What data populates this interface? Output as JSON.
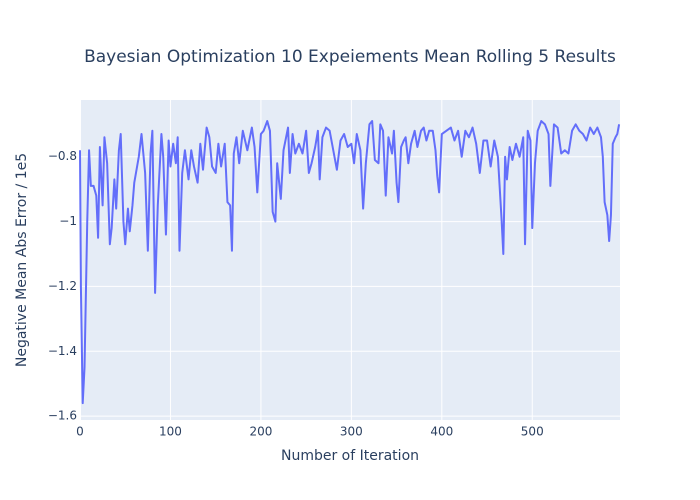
{
  "chart_data": {
    "type": "line",
    "title": "Bayesian Optimization 10 Expeiements Mean Rolling 5 Results",
    "x_label": "Number of Iteration",
    "y_label": "Negative Mean Abs Error / 1e5",
    "xlim": [
      0,
      597
    ],
    "ylim": [
      -1.612,
      -0.625
    ],
    "xticks": [
      0,
      100,
      200,
      300,
      400,
      500
    ],
    "yticks": [
      {
        "value": -1.6,
        "label": "−1.6"
      },
      {
        "value": -1.4,
        "label": "−1.4"
      },
      {
        "value": -1.2,
        "label": "−1.2"
      },
      {
        "value": -1,
        "label": "−1"
      },
      {
        "value": -0.8,
        "label": "−0.8"
      }
    ],
    "grid": true,
    "series": [
      {
        "color": "#636efa",
        "x": [
          0,
          1,
          3,
          5,
          8,
          10,
          12,
          15,
          18,
          20,
          22,
          25,
          27,
          30,
          33,
          35,
          38,
          40,
          43,
          45,
          48,
          50,
          53,
          55,
          58,
          60,
          65,
          68,
          72,
          75,
          78,
          80,
          83,
          86,
          90,
          92,
          95,
          98,
          100,
          103,
          106,
          108,
          110,
          113,
          116,
          120,
          123,
          126,
          130,
          133,
          136,
          140,
          143,
          146,
          150,
          153,
          156,
          160,
          163,
          166,
          168,
          170,
          173,
          176,
          180,
          185,
          190,
          193,
          196,
          200,
          203,
          207,
          210,
          213,
          216,
          218,
          222,
          225,
          230,
          232,
          235,
          238,
          242,
          246,
          250,
          253,
          256,
          260,
          263,
          265,
          268,
          272,
          276,
          280,
          284,
          288,
          292,
          296,
          300,
          303,
          306,
          310,
          313,
          316,
          320,
          323,
          326,
          330,
          332,
          335,
          338,
          341,
          345,
          347,
          350,
          352,
          355,
          358,
          360,
          363,
          366,
          370,
          373,
          377,
          380,
          383,
          386,
          390,
          393,
          395,
          397,
          400,
          405,
          410,
          414,
          418,
          422,
          426,
          430,
          434,
          438,
          442,
          446,
          450,
          454,
          458,
          462,
          466,
          468,
          470,
          472,
          475,
          478,
          482,
          486,
          490,
          492,
          495,
          498,
          500,
          503,
          506,
          510,
          514,
          518,
          520,
          524,
          528,
          532,
          536,
          540,
          544,
          548,
          552,
          556,
          560,
          564,
          568,
          572,
          576,
          578,
          580,
          583,
          585,
          587,
          589,
          592,
          594,
          596
        ],
        "values": [
          -0.78,
          -1.2,
          -1.56,
          -1.45,
          -1.0,
          -0.78,
          -0.89,
          -0.89,
          -0.92,
          -1.05,
          -0.77,
          -0.95,
          -0.74,
          -0.82,
          -1.07,
          -1.02,
          -0.87,
          -0.96,
          -0.78,
          -0.73,
          -1.0,
          -1.07,
          -0.96,
          -1.03,
          -0.95,
          -0.88,
          -0.8,
          -0.73,
          -0.85,
          -1.09,
          -0.79,
          -0.72,
          -1.22,
          -0.95,
          -0.73,
          -0.8,
          -1.04,
          -0.75,
          -0.83,
          -0.76,
          -0.82,
          -0.74,
          -1.09,
          -0.85,
          -0.78,
          -0.87,
          -0.78,
          -0.83,
          -0.88,
          -0.76,
          -0.84,
          -0.71,
          -0.74,
          -0.83,
          -0.85,
          -0.76,
          -0.83,
          -0.76,
          -0.94,
          -0.95,
          -1.09,
          -0.79,
          -0.74,
          -0.82,
          -0.72,
          -0.78,
          -0.71,
          -0.77,
          -0.91,
          -0.73,
          -0.72,
          -0.69,
          -0.72,
          -0.97,
          -1.0,
          -0.82,
          -0.93,
          -0.78,
          -0.71,
          -0.85,
          -0.73,
          -0.79,
          -0.76,
          -0.79,
          -0.72,
          -0.85,
          -0.82,
          -0.77,
          -0.72,
          -0.87,
          -0.74,
          -0.71,
          -0.72,
          -0.78,
          -0.84,
          -0.75,
          -0.73,
          -0.77,
          -0.76,
          -0.82,
          -0.73,
          -0.78,
          -0.96,
          -0.82,
          -0.7,
          -0.69,
          -0.81,
          -0.82,
          -0.7,
          -0.72,
          -0.92,
          -0.74,
          -0.79,
          -0.72,
          -0.88,
          -0.94,
          -0.77,
          -0.75,
          -0.74,
          -0.82,
          -0.76,
          -0.72,
          -0.77,
          -0.72,
          -0.71,
          -0.75,
          -0.72,
          -0.72,
          -0.78,
          -0.86,
          -0.91,
          -0.73,
          -0.72,
          -0.71,
          -0.75,
          -0.72,
          -0.8,
          -0.72,
          -0.74,
          -0.71,
          -0.76,
          -0.85,
          -0.75,
          -0.75,
          -0.83,
          -0.75,
          -0.8,
          -0.99,
          -1.1,
          -0.8,
          -0.87,
          -0.77,
          -0.81,
          -0.76,
          -0.8,
          -0.74,
          -1.07,
          -0.72,
          -0.75,
          -1.02,
          -0.82,
          -0.72,
          -0.69,
          -0.7,
          -0.73,
          -0.89,
          -0.7,
          -0.71,
          -0.79,
          -0.78,
          -0.79,
          -0.72,
          -0.7,
          -0.72,
          -0.73,
          -0.75,
          -0.71,
          -0.73,
          -0.71,
          -0.74,
          -0.8,
          -0.94,
          -0.98,
          -1.06,
          -0.98,
          -0.76,
          -0.74,
          -0.73,
          -0.7
        ]
      }
    ]
  }
}
